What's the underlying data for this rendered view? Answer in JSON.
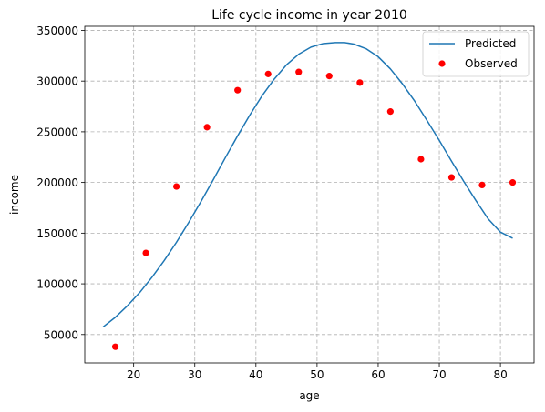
{
  "chart_data": {
    "type": "line",
    "title": "Life cycle income in year 2010",
    "xlabel": "age",
    "ylabel": "income",
    "xlim": [
      12,
      85.5
    ],
    "ylim": [
      22000,
      354000
    ],
    "x_ticks": [
      20,
      30,
      40,
      50,
      60,
      70,
      80
    ],
    "y_ticks": [
      50000,
      100000,
      150000,
      200000,
      250000,
      300000,
      350000
    ],
    "grid": true,
    "legend_position": "top-right",
    "series": [
      {
        "name": "Predicted",
        "kind": "line",
        "color": "#1f77b4",
        "x": [
          15,
          17,
          19,
          21,
          23,
          25,
          27,
          29,
          31,
          33,
          35,
          37,
          39,
          41,
          43,
          45,
          47,
          49,
          51,
          53,
          54.5,
          56,
          58,
          60,
          62,
          64,
          66,
          68,
          70,
          72,
          74,
          76,
          78,
          80,
          82
        ],
        "y": [
          57500,
          67000,
          78500,
          91500,
          106500,
          123000,
          141000,
          160500,
          181000,
          202500,
          224500,
          246000,
          266500,
          285500,
          302000,
          316000,
          326500,
          333500,
          337000,
          338000,
          338000,
          336500,
          332000,
          324000,
          312000,
          297000,
          280000,
          261000,
          241500,
          221000,
          201000,
          182000,
          164000,
          151000,
          145000
        ]
      },
      {
        "name": "Observed",
        "kind": "scatter",
        "color": "#ff0000",
        "x": [
          17,
          22,
          27,
          32,
          37,
          42,
          47,
          52,
          57,
          62,
          67,
          72,
          77,
          82
        ],
        "y": [
          38000,
          130500,
          196000,
          254500,
          291000,
          307000,
          309000,
          305000,
          298500,
          270000,
          223000,
          205000,
          197500,
          200000
        ]
      }
    ]
  }
}
